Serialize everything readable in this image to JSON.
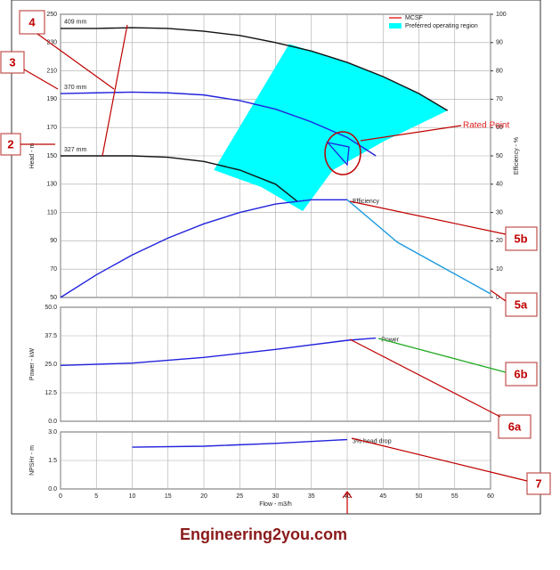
{
  "chart_data": [
    {
      "type": "line",
      "xlim": [
        0,
        60
      ],
      "xticks": [
        0,
        5,
        10,
        15,
        20,
        25,
        30,
        35,
        40,
        45,
        50,
        55,
        60
      ],
      "show_xtick_labels": false,
      "ylabel": "Head - m",
      "ylim": [
        50,
        250
      ],
      "yticks": [
        50,
        70,
        90,
        110,
        130,
        150,
        170,
        190,
        210,
        230,
        250
      ],
      "y2label": "Efficiency - %",
      "y2lim": [
        0,
        100
      ],
      "y2ticks": [
        0,
        10,
        20,
        30,
        40,
        50,
        60,
        70,
        80,
        90,
        100
      ],
      "grid": true,
      "legend": [
        {
          "label": "MCSF",
          "color": "#e02020",
          "kind": "line"
        },
        {
          "label": "Preferred operating region",
          "color": "#00ffff",
          "kind": "box"
        }
      ],
      "series": [
        {
          "type": "area",
          "color": "#00ffff",
          "x": [
            21.4,
            31.9,
            40,
            45,
            50,
            54,
            45,
            38,
            33.8,
            28
          ],
          "values": [
            140,
            229,
            216,
            206,
            194,
            182,
            160,
            140,
            111,
            128
          ]
        },
        {
          "name": "409 mm",
          "color": "#111111",
          "label_at": "start",
          "x": [
            0,
            5,
            10,
            15,
            20,
            25,
            30,
            35,
            40,
            45,
            50,
            54
          ],
          "values": [
            240,
            240,
            240.5,
            240,
            238,
            235,
            230,
            224,
            216,
            206,
            194,
            182
          ]
        },
        {
          "name": "370 mm",
          "color": "#2222dd",
          "label_at": "start",
          "x": [
            0,
            5,
            10,
            15,
            20,
            25,
            30,
            35,
            40,
            44
          ],
          "values": [
            194,
            194.5,
            195,
            194.5,
            193,
            189,
            183,
            174,
            163,
            150
          ]
        },
        {
          "name": "327 mm",
          "color": "#111111",
          "label_at": "start",
          "x": [
            0,
            5,
            10,
            15,
            20,
            25,
            30,
            33
          ],
          "values": [
            150,
            150,
            150,
            149,
            146,
            140,
            130,
            118
          ]
        },
        {
          "name": "Efficiency",
          "color": "#2222dd",
          "axis": "y2",
          "label_at": "end",
          "x": [
            0,
            5,
            10,
            15,
            20,
            25,
            30,
            35,
            40
          ],
          "values": [
            0,
            8,
            15,
            21,
            26,
            30,
            33,
            34.5,
            34.5
          ]
        },
        {
          "color": "#1e9be0",
          "axis": "y2",
          "x": [
            40,
            47,
            60
          ],
          "values": [
            34.5,
            19.5,
            1.3
          ]
        }
      ]
    },
    {
      "type": "line",
      "xlim": [
        0,
        60
      ],
      "xticks": [
        0,
        5,
        10,
        15,
        20,
        25,
        30,
        35,
        40,
        45,
        50,
        55,
        60
      ],
      "show_xtick_labels": false,
      "ylabel": "Power - kW",
      "ylim": [
        0,
        50
      ],
      "yticks": [
        {
          "value": 0,
          "label": "0.0"
        },
        12.5,
        {
          "value": 25,
          "label": "25.0"
        },
        37.5,
        {
          "value": 50,
          "label": "50.0"
        }
      ],
      "grid": true,
      "series": [
        {
          "name": "Power",
          "color": "#2222dd",
          "label_at": "end",
          "x": [
            0,
            10,
            20,
            30,
            40,
            44
          ],
          "values": [
            24.5,
            25.5,
            28,
            31.5,
            35.5,
            36.5
          ]
        }
      ]
    },
    {
      "type": "line",
      "xlabel": "Flow - m3/h",
      "xlim": [
        0,
        60
      ],
      "xticks": [
        0,
        5,
        10,
        15,
        20,
        25,
        30,
        35,
        40,
        45,
        50,
        55,
        60
      ],
      "show_xtick_labels": true,
      "ylabel": "NPSHr - m",
      "ylim": [
        0,
        3
      ],
      "yticks": [
        {
          "value": 0,
          "label": "0.0"
        },
        1.5,
        {
          "value": 3,
          "label": "3.0"
        }
      ],
      "grid": true,
      "series": [
        {
          "name": "3% head drop",
          "color": "#2222dd",
          "label_at": "end",
          "x": [
            10,
            20,
            30,
            40
          ],
          "values": [
            2.2,
            2.25,
            2.4,
            2.6
          ]
        }
      ]
    }
  ],
  "annotations": [
    "4",
    "3",
    "2",
    "Rated Point",
    "5b",
    "5a",
    "6b",
    "6a",
    "7"
  ],
  "footer": "Engineering2you.com"
}
